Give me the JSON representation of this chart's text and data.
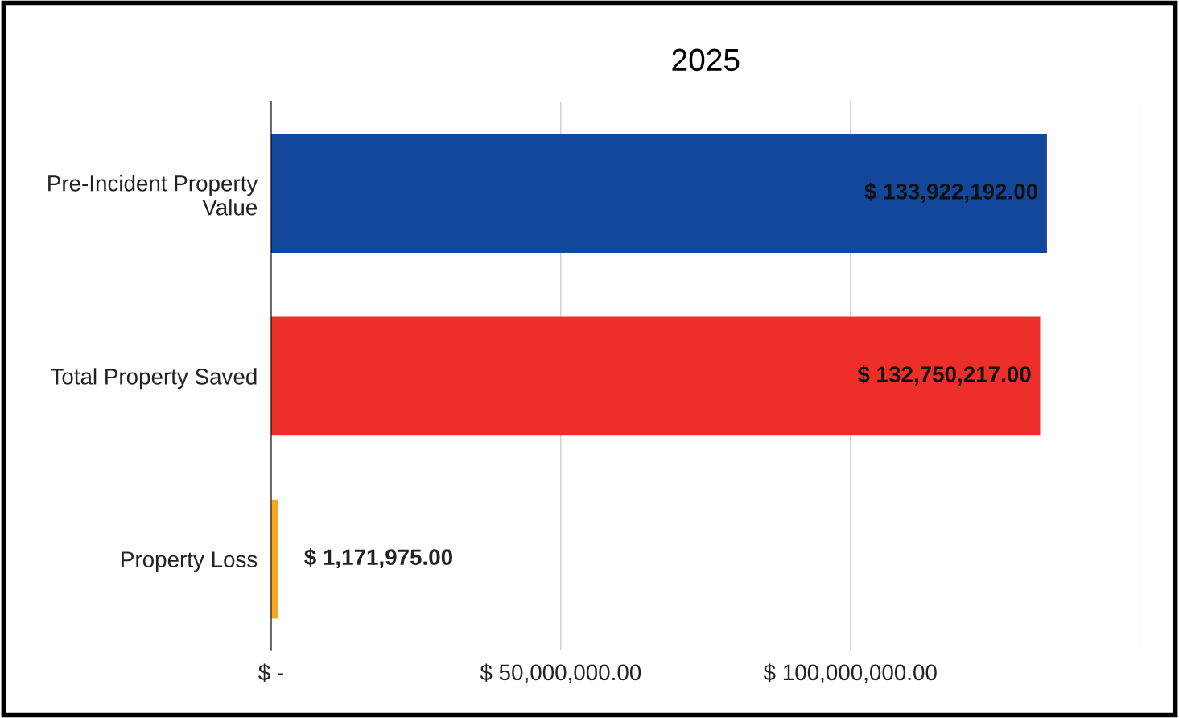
{
  "chart_data": {
    "type": "bar",
    "orientation": "horizontal",
    "title": "2025",
    "categories": [
      "Pre-Incident Property\nValue",
      "Total Property Saved",
      "Property Loss"
    ],
    "values": [
      133922192,
      132750217,
      1171975
    ],
    "colors": [
      "#12479b",
      "#ee2e29",
      "#f5a623"
    ],
    "value_labels": [
      "$ 133,922,192.00",
      "$ 132,750,217.00",
      "$ 1,171,975.00"
    ],
    "xlim": [
      0,
      150000000
    ],
    "xticks": [
      {
        "value": 0,
        "label": "$ -"
      },
      {
        "value": 50000000,
        "label": "$ 50,000,000.00"
      },
      {
        "value": 100000000,
        "label": "$ 100,000,000.00"
      },
      {
        "value": 150000000,
        "label": null
      }
    ],
    "grid": "x",
    "legend": false
  }
}
